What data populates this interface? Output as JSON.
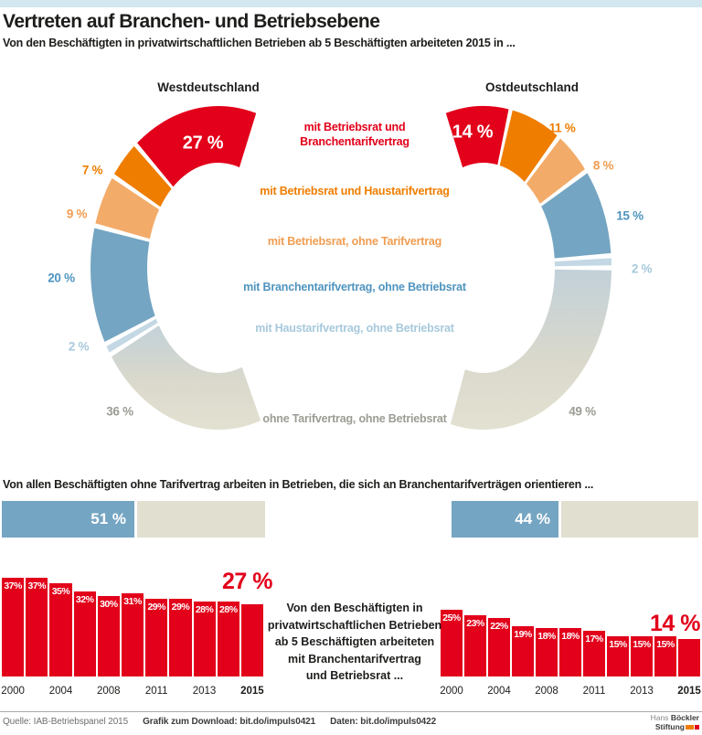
{
  "colors": {
    "top_band": "#d3e7ee",
    "red": "#e2001a",
    "orange": "#ef7d00",
    "light_orange": "#f3ab69",
    "blue": "#74a5c2",
    "light_blue": "#c3d8e4",
    "beige": "#e1dfd0",
    "text_dark": "#1d1d1b",
    "gray_label": "#9c9c94"
  },
  "header": {
    "title": "Vertreten auf Branchen- und Betriebsebene",
    "subtitle": "Von den Beschäftigten in privatwirtschaftlichen Betrieben ab 5 Beschäftigten arbeiteten 2015 in ..."
  },
  "donuts": {
    "west_title": "Westdeutschland",
    "east_title": "Ostdeutschland",
    "legend": [
      {
        "label": "mit Betriebsrat und Branchentarifvertrag",
        "color": "#e2001a"
      },
      {
        "label": "mit Betriebsrat und Haustarifvertrag",
        "color": "#ef7d00"
      },
      {
        "label": "mit Betriebsrat, ohne Tarifvertrag",
        "color": "#f19d51"
      },
      {
        "label": "mit Branchentarifvertrag, ohne Betriebsrat",
        "color": "#4f94bf"
      },
      {
        "label": "mit Haustarifvertrag, ohne Betriebsrat",
        "color": "#a7c9dc"
      },
      {
        "label": "ohne Tarifvertrag, ohne Betriebsrat",
        "color": "#9c9c94"
      }
    ]
  },
  "split_bars": {
    "heading": "Von allen Beschäftigten ohne Tarifvertrag arbeiten in Betrieben, die sich an Branchentarifverträgen orientieren ..."
  },
  "note_lines": [
    "Von den Beschäftigten in",
    "privatwirtschaftlichen Betrieben",
    "ab 5 Beschäftigten arbeiteten",
    "mit Branchentarifvertrag",
    "und Betriebsrat ..."
  ],
  "chart_data": [
    {
      "type": "donut",
      "title": "Westdeutschland",
      "unit": "%",
      "categories": [
        "mit Betriebsrat und Branchentarifvertrag",
        "mit Betriebsrat und Haustarifvertrag",
        "mit Betriebsrat, ohne Tarifvertrag",
        "mit Branchentarifvertrag, ohne Betriebsrat",
        "mit Haustarifvertrag, ohne Betriebsrat",
        "ohne Tarifvertrag, ohne Betriebsrat"
      ],
      "values": [
        27,
        7,
        9,
        20,
        2,
        36
      ],
      "labels": [
        "27 %",
        "7 %",
        "9 %",
        "20 %",
        "2 %",
        "36 %"
      ]
    },
    {
      "type": "donut",
      "title": "Ostdeutschland",
      "unit": "%",
      "categories": [
        "mit Betriebsrat und Branchentarifvertrag",
        "mit Betriebsrat und Haustarifvertrag",
        "mit Betriebsrat, ohne Tarifvertrag",
        "mit Branchentarifvertrag, ohne Betriebsrat",
        "mit Haustarifvertrag, ohne Betriebsrat",
        "ohne Tarifvertrag, ohne Betriebsrat"
      ],
      "values": [
        14,
        11,
        8,
        15,
        2,
        49
      ],
      "labels": [
        "14 %",
        "11 %",
        "8 %",
        "15 %",
        "2 %",
        "49 %"
      ]
    },
    {
      "type": "bar",
      "title": "Beschäftigte ohne Tarifvertrag in Betrieben mit Orientierung an Branchentarifverträgen",
      "categories": [
        "Westdeutschland",
        "Ostdeutschland"
      ],
      "values": [
        51,
        44
      ],
      "labels": [
        "51 %",
        "44 %"
      ]
    },
    {
      "type": "bar",
      "title": "Westdeutschland Zeitreihe",
      "unit": "%",
      "x_ticks": [
        "2000",
        "2004",
        "2008",
        "2011",
        "2013",
        "2015"
      ],
      "tick_indices": [
        0,
        2,
        4,
        6,
        8,
        10
      ],
      "values": [
        37,
        37,
        35,
        32,
        30,
        31,
        29,
        29,
        28,
        28,
        27
      ],
      "bar_labels": [
        "37%",
        "37%",
        "35%",
        "32%",
        "30%",
        "31%",
        "29%",
        "29%",
        "28%",
        "28%",
        ""
      ],
      "final_label": "27 %",
      "ylim": [
        0,
        40
      ]
    },
    {
      "type": "bar",
      "title": "Ostdeutschland Zeitreihe",
      "unit": "%",
      "x_ticks": [
        "2000",
        "2004",
        "2008",
        "2011",
        "2013",
        "2015"
      ],
      "tick_indices": [
        0,
        2,
        4,
        6,
        8,
        10
      ],
      "values": [
        25,
        23,
        22,
        19,
        18,
        18,
        17,
        15,
        15,
        15,
        14
      ],
      "bar_labels": [
        "25%",
        "23%",
        "22%",
        "19%",
        "18%",
        "18%",
        "17%",
        "15%",
        "15%",
        "15%",
        ""
      ],
      "final_label": "14 %",
      "ylim": [
        0,
        40
      ]
    }
  ],
  "footer": {
    "source": "Quelle: IAB-Betriebspanel 2015",
    "download": "Grafik zum Download: bit.do/impuls0421",
    "data_link": "Daten: bit.do/impuls0422",
    "logo_line1_regular": "Hans",
    "logo_line1_bold": "Böckler",
    "logo_line2_bold": "Stiftung"
  }
}
